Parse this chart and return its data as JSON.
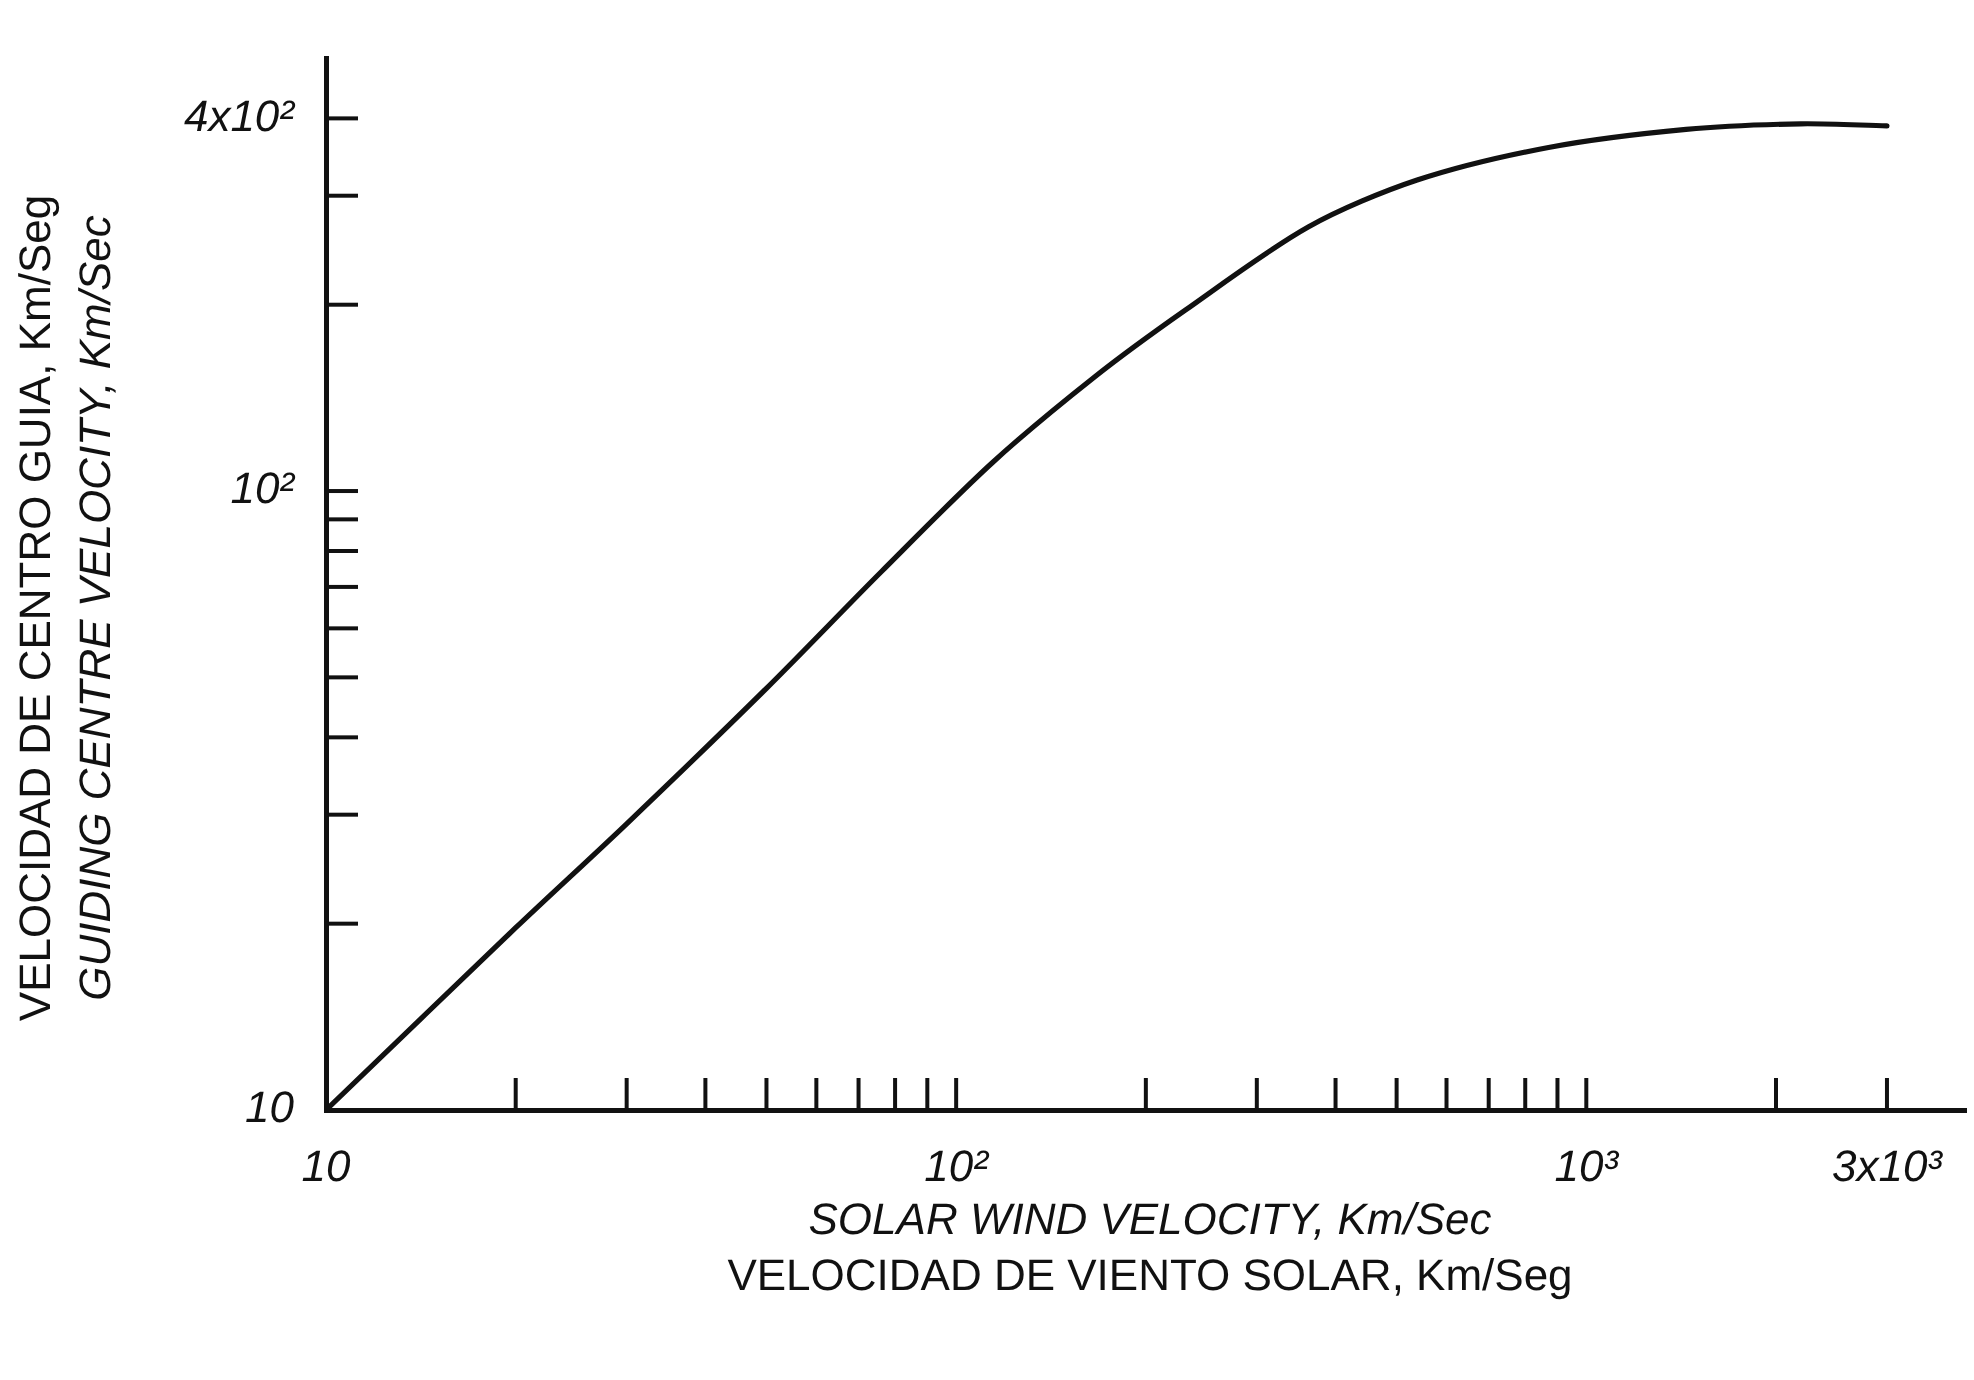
{
  "chart_data": {
    "type": "line",
    "xlabel": "SOLAR WIND VELOCITY, Km/Sec\nVELOCIDAD DE VIENTO SOLAR, Km/Seg",
    "ylabel": "VELOCIDAD DE CENTRO GUIA, Km/Seg\nGUIDING CENTRE VELOCITY, Km/Sec",
    "log": "xy",
    "marker": "none",
    "line_style": "solid",
    "xlim": [
      10,
      4000
    ],
    "ylim": [
      10,
      500
    ],
    "xticks": [
      {
        "value": 10,
        "label": "10"
      },
      {
        "value": 20,
        "label": null
      },
      {
        "value": 30,
        "label": null
      },
      {
        "value": 40,
        "label": null
      },
      {
        "value": 50,
        "label": null
      },
      {
        "value": 60,
        "label": null
      },
      {
        "value": 70,
        "label": null
      },
      {
        "value": 80,
        "label": null
      },
      {
        "value": 90,
        "label": null
      },
      {
        "value": 100,
        "label": "10²"
      },
      {
        "value": 200,
        "label": null
      },
      {
        "value": 300,
        "label": null
      },
      {
        "value": 400,
        "label": null
      },
      {
        "value": 500,
        "label": null
      },
      {
        "value": 600,
        "label": null
      },
      {
        "value": 700,
        "label": null
      },
      {
        "value": 800,
        "label": null
      },
      {
        "value": 900,
        "label": null
      },
      {
        "value": 1000,
        "label": "10³"
      },
      {
        "value": 2000,
        "label": null
      },
      {
        "value": 3000,
        "label": "3x10³"
      }
    ],
    "yticks": [
      {
        "value": 10,
        "label": "10"
      },
      {
        "value": 20,
        "label": null
      },
      {
        "value": 30,
        "label": null
      },
      {
        "value": 40,
        "label": null
      },
      {
        "value": 50,
        "label": null
      },
      {
        "value": 60,
        "label": null
      },
      {
        "value": 70,
        "label": null
      },
      {
        "value": 80,
        "label": null
      },
      {
        "value": 90,
        "label": null
      },
      {
        "value": 100,
        "label": "10²"
      },
      {
        "value": 200,
        "label": null
      },
      {
        "value": 300,
        "label": null
      },
      {
        "value": 400,
        "label": "4x10²"
      }
    ],
    "series": [
      {
        "color": "#111111",
        "x": [
          10,
          20,
          30,
          50,
          76,
          114,
          166,
          231,
          362,
          539,
          871,
          1440,
          2190,
          3000
        ],
        "values": [
          10,
          19.7,
          29,
          48,
          74,
          111,
          153,
          196,
          267,
          318,
          359,
          384,
          392,
          389
        ]
      }
    ]
  }
}
